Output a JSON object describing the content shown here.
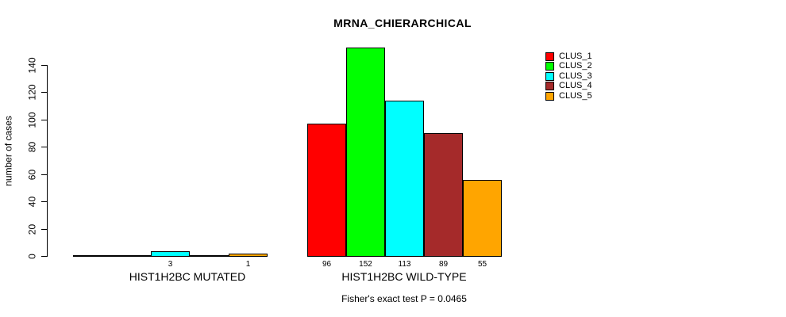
{
  "chart_data": {
    "type": "bar",
    "title": "MRNA_CHIERARCHICAL",
    "ylabel": "number of cases",
    "xlabel": "",
    "ylim": [
      0,
      155
    ],
    "yticks": [
      0,
      20,
      40,
      60,
      80,
      100,
      120,
      140
    ],
    "grid": false,
    "legend_position": "top-right",
    "categories": [
      "HIST1H2BC MUTATED",
      "HIST1H2BC WILD-TYPE"
    ],
    "series": [
      {
        "name": "CLUS_1",
        "color": "#ff0000",
        "values": [
          0,
          96
        ]
      },
      {
        "name": "CLUS_2",
        "color": "#00ff00",
        "values": [
          0,
          152
        ]
      },
      {
        "name": "CLUS_3",
        "color": "#00ffff",
        "values": [
          3,
          113
        ]
      },
      {
        "name": "CLUS_4",
        "color": "#a52a2a",
        "values": [
          0,
          89
        ]
      },
      {
        "name": "CLUS_5",
        "color": "#ffa500",
        "values": [
          1,
          55
        ]
      }
    ],
    "bar_value_labels": [
      [
        "",
        "",
        "3",
        "",
        "1"
      ],
      [
        "96",
        "152",
        "113",
        "89",
        "55"
      ]
    ],
    "annotation": "Fisher's exact test P = 0.0465"
  }
}
